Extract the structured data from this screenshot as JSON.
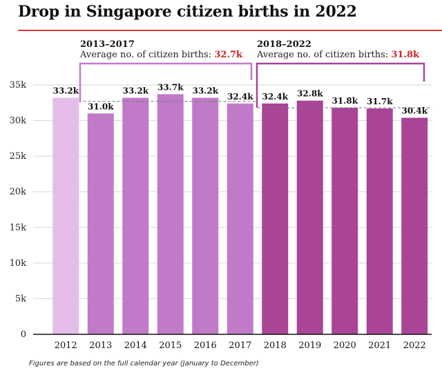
{
  "title": "Drop in Singapore citizen births in 2022",
  "footnote": "Figures are based on the full calendar year (January to December)",
  "periods": [
    {
      "range": "2013–2017",
      "avg_prefix": "Average no. of citizen births: ",
      "avg_value": "32.7k",
      "avg_k": 32.7
    },
    {
      "range": "2018–2022",
      "avg_prefix": "Average no. of citizen births: ",
      "avg_value": "31.8k",
      "avg_k": 31.8
    }
  ],
  "colors": {
    "bar_2012": "#e4bde8",
    "bar_2013_2017": "#c07ac8",
    "bar_2018_2022": "#a94497",
    "bracket_2013_2017": "#c07ac8",
    "bracket_2018_2022": "#a94497",
    "title_rule": "#e03131",
    "avg_value_text": "#cc2222"
  },
  "chart_data": {
    "type": "bar",
    "title": "Drop in Singapore citizen births in 2022",
    "categories": [
      "2012",
      "2013",
      "2014",
      "2015",
      "2016",
      "2017",
      "2018",
      "2019",
      "2020",
      "2021",
      "2022"
    ],
    "values": [
      33.2,
      31.0,
      33.2,
      33.7,
      33.2,
      32.4,
      32.4,
      32.8,
      31.8,
      31.7,
      30.4
    ],
    "data_labels": [
      "33.2k",
      "31.0k",
      "33.2k",
      "33.7k",
      "33.2k",
      "32.4k",
      "32.4k",
      "32.8k",
      "31.8k",
      "31.7k",
      "30.4k"
    ],
    "unit": "k",
    "ylim": [
      0,
      35
    ],
    "yticks": [
      0,
      5,
      10,
      15,
      20,
      25,
      30,
      35
    ],
    "ytick_labels": [
      "0",
      "5k",
      "10k",
      "15k",
      "20k",
      "25k",
      "30k",
      "35k"
    ],
    "grid": true,
    "xlabel": "",
    "ylabel": ""
  }
}
